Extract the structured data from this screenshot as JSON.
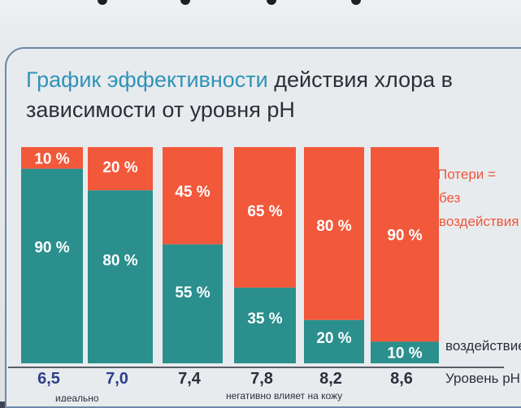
{
  "title": {
    "accent": "График эффективности",
    "rest": " действия хлора в",
    "line2": "зависимости от уровня pH"
  },
  "legend": {
    "loss_line1": "Потери =",
    "loss_line2": "без",
    "loss_line3": "воздействия",
    "effect": "воздействие",
    "axis": "Уровень pH"
  },
  "notes": {
    "ideal": "идеально",
    "negative": "негативно влияет на кожу"
  },
  "colors": {
    "effective": "#2a8f8d",
    "loss": "#f2583a",
    "ph_ideal": "#2d3f8a",
    "ph_other": "#2a2f3a"
  },
  "chart_data": {
    "type": "bar",
    "stacked": true,
    "categories": [
      "6,5",
      "7,0",
      "7,4",
      "7,8",
      "8,2",
      "8,6"
    ],
    "series": [
      {
        "name": "воздействие",
        "values": [
          90,
          80,
          55,
          35,
          20,
          10
        ],
        "labels": [
          "90 %",
          "80 %",
          "55 %",
          "35 %",
          "20 %",
          "10 %"
        ]
      },
      {
        "name": "Потери = без воздействия",
        "values": [
          10,
          20,
          45,
          65,
          80,
          90
        ],
        "labels": [
          "10 %",
          "20 %",
          "45 %",
          "65 %",
          "80 %",
          "90 %"
        ]
      }
    ],
    "ylim": [
      0,
      100
    ],
    "xlabel": "Уровень pH",
    "ylabel": ""
  }
}
